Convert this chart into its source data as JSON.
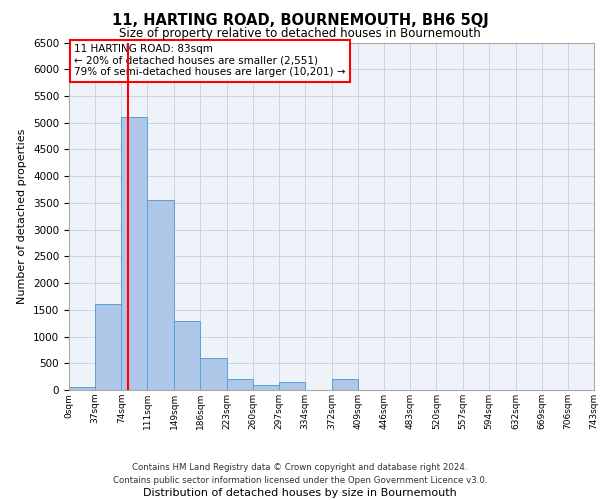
{
  "title": "11, HARTING ROAD, BOURNEMOUTH, BH6 5QJ",
  "subtitle": "Size of property relative to detached houses in Bournemouth",
  "xlabel": "Distribution of detached houses by size in Bournemouth",
  "ylabel": "Number of detached properties",
  "footer_line1": "Contains HM Land Registry data © Crown copyright and database right 2024.",
  "footer_line2": "Contains public sector information licensed under the Open Government Licence v3.0.",
  "annotation_line1": "11 HARTING ROAD: 83sqm",
  "annotation_line2": "← 20% of detached houses are smaller (2,551)",
  "annotation_line3": "79% of semi-detached houses are larger (10,201) →",
  "property_size": 83,
  "bar_edges": [
    0,
    37,
    74,
    111,
    149,
    186,
    223,
    260,
    297,
    334,
    372,
    409,
    446,
    483,
    520,
    557,
    594,
    632,
    669,
    706,
    743
  ],
  "bar_heights": [
    50,
    1600,
    5100,
    3550,
    1300,
    600,
    200,
    100,
    150,
    0,
    200,
    0,
    0,
    0,
    0,
    0,
    0,
    0,
    0,
    0
  ],
  "bar_color": "#aec6e8",
  "bar_edgecolor": "#5a9fd4",
  "redline_x": 83,
  "ylim": [
    0,
    6500
  ],
  "yticks": [
    0,
    500,
    1000,
    1500,
    2000,
    2500,
    3000,
    3500,
    4000,
    4500,
    5000,
    5500,
    6000,
    6500
  ],
  "bg_color": "#eef2f9",
  "grid_color": "#c8d4e8",
  "annotation_box_edgecolor": "red",
  "redline_color": "red"
}
